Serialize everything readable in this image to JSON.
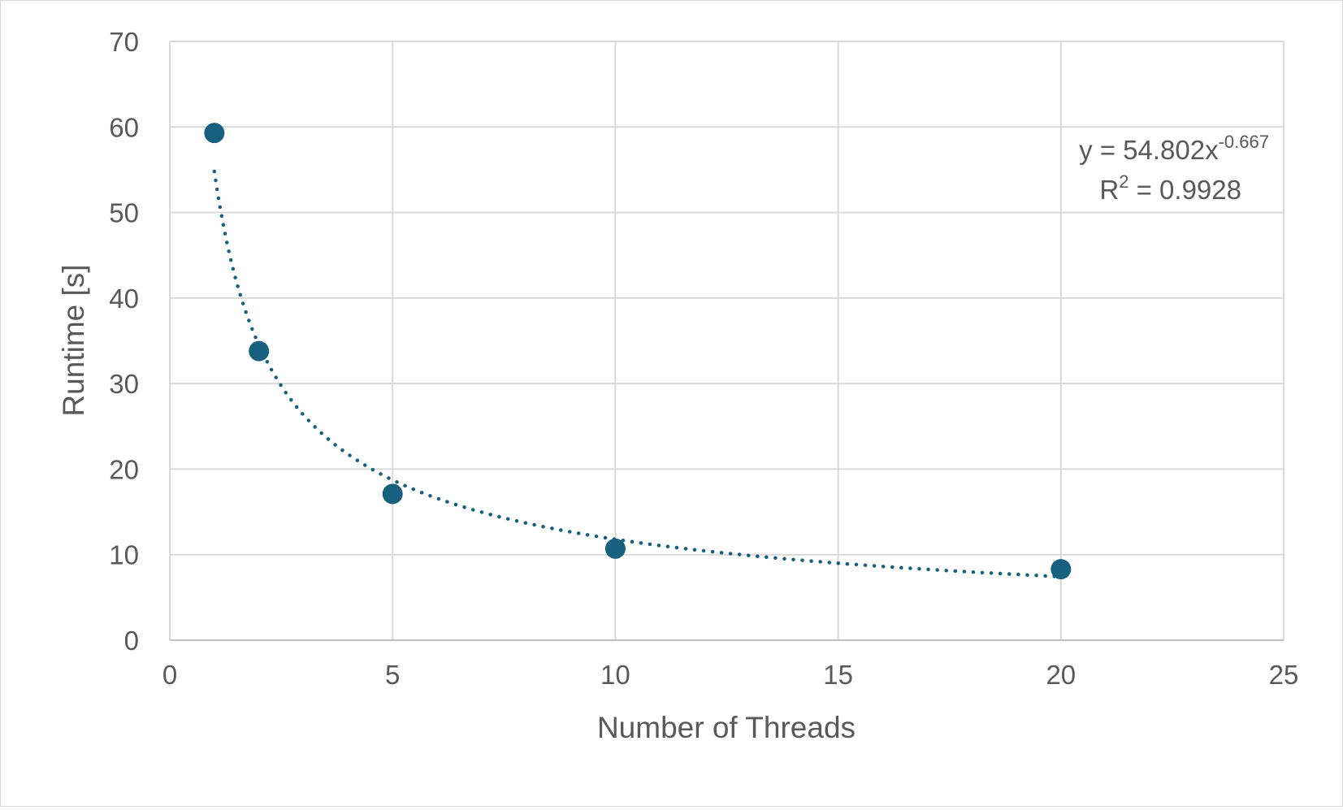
{
  "chart_data": {
    "type": "scatter",
    "xlabel": "Number of Threads",
    "ylabel": "Runtime [s]",
    "xlim": [
      0,
      25
    ],
    "ylim": [
      0,
      70
    ],
    "x_ticks": [
      "0",
      "5",
      "10",
      "15",
      "20",
      "25"
    ],
    "y_ticks": [
      "0",
      "10",
      "20",
      "30",
      "40",
      "50",
      "60",
      "70"
    ],
    "grid": true,
    "series": [
      {
        "x": [
          1,
          2,
          5,
          10,
          20
        ],
        "y": [
          59.3,
          33.8,
          17.1,
          10.7,
          8.3
        ],
        "color": "#17607f"
      }
    ],
    "trendline": {
      "kind": "power",
      "coefficient": 54.802,
      "exponent": -0.667,
      "x_range": [
        1,
        20
      ],
      "style": "dotted",
      "color": "#17607f"
    },
    "annotation": {
      "equation_prefix": "y = 54.802x",
      "equation_exponent": "-0.667",
      "r2_prefix": "R",
      "r2_sup": "2",
      "r2_value": " = 0.9928"
    }
  }
}
